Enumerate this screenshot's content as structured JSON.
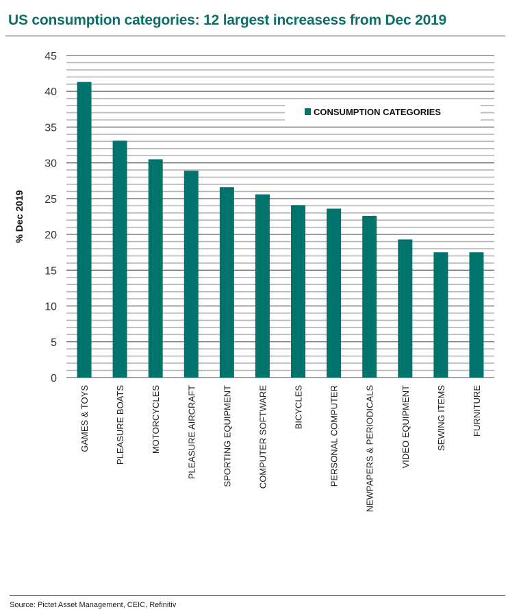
{
  "title": "US consumption categories: 12 largest increasess from Dec 2019",
  "source": "Source: Pictet Asset Management, CEIC, Refinitiv",
  "colors": {
    "bar": "#00736d",
    "title": "#0b7068"
  },
  "chart_data": {
    "type": "bar",
    "title": "US consumption categories: 12 largest increasess from Dec 2019",
    "xlabel": "",
    "ylabel": "% Dec 2019",
    "ylim": [
      0,
      45
    ],
    "yticks": [
      0,
      5,
      10,
      15,
      20,
      25,
      30,
      35,
      40,
      45
    ],
    "grid": true,
    "legend": {
      "placement": "top-right",
      "entries": [
        "CONSUMPTION CATEGORIES"
      ]
    },
    "categories": [
      "GAMES & TOYS",
      "PLEASURE BOATS",
      "MOTORCYCLES",
      "PLEASURE AIRCRAFT",
      "SPORTING EQUIPMENT",
      "COMPUTER SOFTWARE",
      "BICYCLES",
      "PERSONAL COMPUTER",
      "NEWPAPERS & PERIODICALS",
      "VIDEO EQUIPMENT",
      "SEWING ITEMS",
      "FURNITURE"
    ],
    "series": [
      {
        "name": "CONSUMPTION CATEGORIES",
        "values": [
          41.3,
          33.1,
          30.5,
          28.9,
          26.6,
          25.6,
          24.1,
          23.6,
          22.6,
          19.3,
          17.5,
          17.5
        ]
      }
    ]
  }
}
